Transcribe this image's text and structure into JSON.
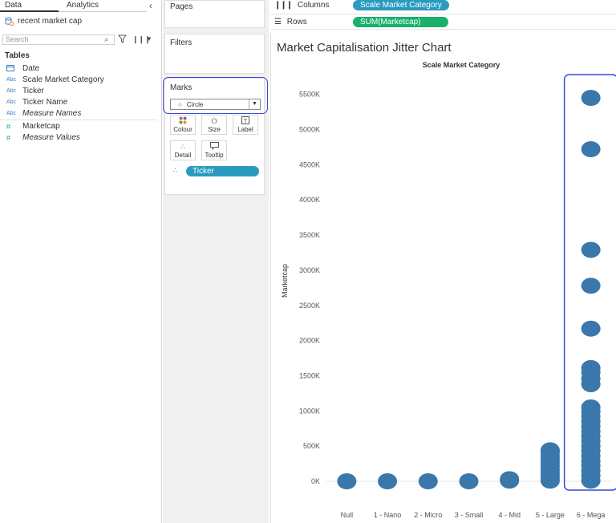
{
  "data_pane": {
    "tabs": [
      "Data",
      "Analytics"
    ],
    "collapse_icon": "chevron-left-icon",
    "datasource": "recent market cap",
    "search_placeholder": "Search",
    "tables_heading": "Tables",
    "fields": [
      {
        "type": "Date",
        "name": "Date",
        "icon": "calendar-icon"
      },
      {
        "type": "Abc",
        "name": "Scale Market Category",
        "icon": "abc-icon"
      },
      {
        "type": "Abc",
        "name": "Ticker",
        "icon": "abc-icon"
      },
      {
        "type": "Abc",
        "name": "Ticker Name",
        "icon": "abc-icon"
      },
      {
        "type": "Abc",
        "name": "Measure Names",
        "icon": "abc-icon"
      },
      {
        "type": "#",
        "name": "Marketcap",
        "icon": "measure-icon"
      },
      {
        "type": "#",
        "name": "Measure Values",
        "icon": "measure-icon"
      }
    ]
  },
  "cards": {
    "pages": "Pages",
    "filters": "Filters",
    "marks": "Marks",
    "mark_type": "Circle",
    "mark_buttons": [
      "Colour",
      "Size",
      "Label",
      "Detail",
      "Tooltip"
    ],
    "detail_pill": "Ticker"
  },
  "shelves": {
    "columns_label": "Columns",
    "rows_label": "Rows",
    "columns_pill": "Scale Market Category",
    "rows_pill": "SUM(Marketcap)",
    "columns_color": "#2a9bbf",
    "rows_color": "#18b06a"
  },
  "chart_data": {
    "type": "scatter",
    "title": "Market Capitalisation Jitter Chart",
    "xlabel": "Scale Market Category",
    "ylabel": "Marketcap",
    "categories": [
      "Null",
      "1 - Nano",
      "2 - Micro",
      "3 - Small",
      "4 - Mid",
      "5 - Large",
      "6 - Mega"
    ],
    "y_ticks": [
      "0K",
      "500K",
      "1000K",
      "1500K",
      "2000K",
      "2500K",
      "3000K",
      "3500K",
      "4000K",
      "4500K",
      "5000K",
      "5500K"
    ],
    "ylim": [
      -250,
      5800
    ],
    "mark_color": "#3a77aa",
    "highlight_category": "6 - Mega",
    "highlight_color": "#3a46d8",
    "points": [
      {
        "category": "Null",
        "y": 0
      },
      {
        "category": "1 - Nano",
        "y": 0
      },
      {
        "category": "2 - Micro",
        "y": 0
      },
      {
        "category": "3 - Small",
        "y": 0
      },
      {
        "category": "4 - Mid",
        "y": 10
      },
      {
        "category": "4 - Mid",
        "y": 30
      },
      {
        "category": "5 - Large",
        "y": 10
      },
      {
        "category": "5 - Large",
        "y": 60
      },
      {
        "category": "5 - Large",
        "y": 110
      },
      {
        "category": "5 - Large",
        "y": 160
      },
      {
        "category": "5 - Large",
        "y": 210
      },
      {
        "category": "5 - Large",
        "y": 260
      },
      {
        "category": "5 - Large",
        "y": 310
      },
      {
        "category": "5 - Large",
        "y": 360
      },
      {
        "category": "5 - Large",
        "y": 410
      },
      {
        "category": "5 - Large",
        "y": 440
      },
      {
        "category": "6 - Mega",
        "y": 10
      },
      {
        "category": "6 - Mega",
        "y": 80
      },
      {
        "category": "6 - Mega",
        "y": 150
      },
      {
        "category": "6 - Mega",
        "y": 220
      },
      {
        "category": "6 - Mega",
        "y": 290
      },
      {
        "category": "6 - Mega",
        "y": 360
      },
      {
        "category": "6 - Mega",
        "y": 430
      },
      {
        "category": "6 - Mega",
        "y": 500
      },
      {
        "category": "6 - Mega",
        "y": 570
      },
      {
        "category": "6 - Mega",
        "y": 640
      },
      {
        "category": "6 - Mega",
        "y": 710
      },
      {
        "category": "6 - Mega",
        "y": 780
      },
      {
        "category": "6 - Mega",
        "y": 850
      },
      {
        "category": "6 - Mega",
        "y": 920
      },
      {
        "category": "6 - Mega",
        "y": 990
      },
      {
        "category": "6 - Mega",
        "y": 1050
      },
      {
        "category": "6 - Mega",
        "y": 1380
      },
      {
        "category": "6 - Mega",
        "y": 1460
      },
      {
        "category": "6 - Mega",
        "y": 1550
      },
      {
        "category": "6 - Mega",
        "y": 1610
      },
      {
        "category": "6 - Mega",
        "y": 2170
      },
      {
        "category": "6 - Mega",
        "y": 2780
      },
      {
        "category": "6 - Mega",
        "y": 3290
      },
      {
        "category": "6 - Mega",
        "y": 4720
      },
      {
        "category": "6 - Mega",
        "y": 5450
      }
    ]
  }
}
